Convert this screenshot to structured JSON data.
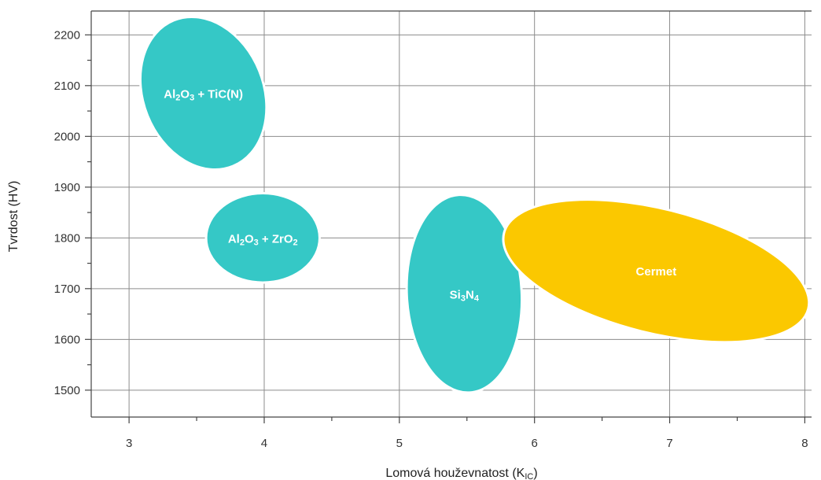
{
  "chart_data": {
    "type": "scatter",
    "xlabel": "Lomová houževnatost (KIC)",
    "xlabel_main": "Lomová houževnatost (K",
    "xlabel_sub": "IC",
    "xlabel_end": ")",
    "ylabel": "Tvrdost (HV)",
    "xlim": [
      2.72,
      8.05
    ],
    "ylim": [
      1447,
      2247
    ],
    "x_ticks": [
      3,
      4,
      5,
      6,
      7,
      8
    ],
    "x_minor_ticks": [
      3.5,
      4.5,
      5.5,
      6.5,
      7.5
    ],
    "y_ticks": [
      1500,
      1600,
      1700,
      1800,
      1900,
      2000,
      2100,
      2200
    ],
    "y_minor_ticks": [
      1550,
      1650,
      1750,
      1850,
      1950,
      2050,
      2150
    ],
    "grid": true,
    "colors": {
      "ceramic": "#35c8c6",
      "cermet": "#fbc800",
      "gap": "#ffffff"
    },
    "regions": [
      {
        "id": "al2o3-tic",
        "label_parts": [
          [
            "Al",
            ""
          ],
          [
            "2",
            "sub"
          ],
          [
            "O",
            ""
          ],
          [
            "3",
            "sub"
          ],
          [
            " + TiC(N)",
            ""
          ]
        ],
        "label": "Al2O3 + TiC(N)",
        "center_x": 3.55,
        "center_y": 2085,
        "x_min": 3.1,
        "x_max": 3.99,
        "y_min": 1930,
        "y_max": 2240,
        "rotation_deg": -22,
        "color": "ceramic"
      },
      {
        "id": "al2o3-zro2",
        "label_parts": [
          [
            "Al",
            ""
          ],
          [
            "2",
            "sub"
          ],
          [
            "O",
            ""
          ],
          [
            "3",
            "sub"
          ],
          [
            " + ZrO",
            ""
          ],
          [
            "2",
            "sub"
          ]
        ],
        "label": "Al2O3 + ZrO2",
        "center_x": 3.99,
        "center_y": 1800,
        "x_min": 3.58,
        "x_max": 4.42,
        "y_min": 1712,
        "y_max": 1888,
        "rotation_deg": 0,
        "color": "ceramic"
      },
      {
        "id": "si3n4",
        "label_parts": [
          [
            "Si",
            ""
          ],
          [
            "3",
            "sub"
          ],
          [
            "N",
            ""
          ],
          [
            "4",
            "sub"
          ]
        ],
        "label": "Si3N4",
        "center_x": 5.48,
        "center_y": 1690,
        "x_min": 5.06,
        "x_max": 5.91,
        "y_min": 1495,
        "y_max": 1885,
        "rotation_deg": -3,
        "color": "ceramic"
      },
      {
        "id": "cermet",
        "label_parts": [
          [
            "Cermet",
            ""
          ]
        ],
        "label": "Cermet",
        "center_x": 6.9,
        "center_y": 1735,
        "x_min": 5.73,
        "x_max": 8.05,
        "y_min": 1620,
        "y_max": 1865,
        "rotation_deg": 14,
        "color": "cermet"
      }
    ]
  }
}
